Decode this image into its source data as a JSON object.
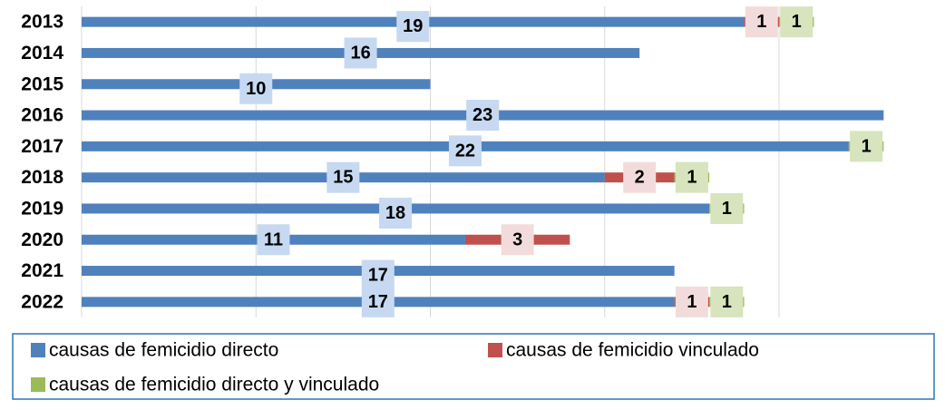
{
  "chart_data": {
    "type": "stacked-barh",
    "categories": [
      "2013",
      "2014",
      "2015",
      "2016",
      "2017",
      "2018",
      "2019",
      "2020",
      "2021",
      "2022"
    ],
    "series": [
      {
        "name": "causas de femicidio directo",
        "color": "#4f81bd",
        "values": [
          19,
          16,
          10,
          23,
          22,
          15,
          18,
          11,
          17,
          17
        ]
      },
      {
        "name": "causas de femicidio vinculado",
        "color": "#c0504d",
        "values": [
          1,
          null,
          null,
          null,
          null,
          2,
          null,
          3,
          null,
          1
        ]
      },
      {
        "name": "causas de femicidio directo y vinculado",
        "color": "#9bbb59",
        "values": [
          1,
          null,
          null,
          null,
          1,
          1,
          1,
          null,
          null,
          1
        ]
      }
    ],
    "xlim": [
      0,
      24
    ],
    "xticks": [
      0,
      5,
      10,
      15,
      20
    ],
    "grid": true
  }
}
